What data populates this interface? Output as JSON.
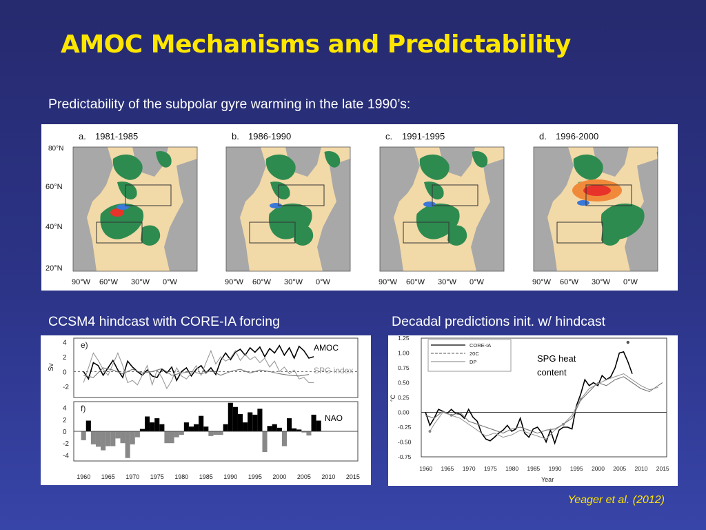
{
  "slide": {
    "title": "AMOC Mechanisms and Predictability",
    "subtitle": "Predictability of the subpolar gyre warming in the late 1990’s:",
    "caption_left": "CCSM4 hindcast with CORE-IA forcing",
    "caption_right": "Decadal predictions init. w/ hindcast",
    "citation": "Yeager et al. (2012)"
  },
  "maps": {
    "lat_labels": [
      "60°N",
      "40°N",
      "20°N"
    ],
    "lon_labels": [
      "90°W",
      "60°W",
      "30°W",
      "0°W"
    ],
    "top_label": "80°N",
    "panels": [
      {
        "letter": "a.",
        "period": "1981-1985"
      },
      {
        "letter": "b.",
        "period": "1986-1990"
      },
      {
        "letter": "c.",
        "period": "1991-1995"
      },
      {
        "letter": "d.",
        "period": "1996-2000"
      }
    ],
    "colors": {
      "land": "#a8a8a8",
      "positive": "#f2d9a8",
      "negative": "#2e8b50",
      "warm": "#e8332a",
      "cool": "#3a78d8"
    }
  },
  "chart_data": [
    {
      "type": "line",
      "panel": "e)",
      "ylabel": "Sv",
      "ylim": [
        -3.5,
        4.5
      ],
      "yticks": [
        4,
        2,
        0,
        -2
      ],
      "series": [
        {
          "name": "AMOC",
          "color": "#000000",
          "x": [
            1960,
            1961,
            1962,
            1963,
            1964,
            1965,
            1966,
            1967,
            1968,
            1969,
            1970,
            1971,
            1972,
            1973,
            1974,
            1975,
            1976,
            1977,
            1978,
            1979,
            1980,
            1981,
            1982,
            1983,
            1984,
            1985,
            1986,
            1987,
            1988,
            1989,
            1990,
            1991,
            1992,
            1993,
            1994,
            1995,
            1996,
            1997,
            1998,
            1999,
            2000,
            2001,
            2002,
            2003,
            2004,
            2005,
            2006,
            2007
          ],
          "values": [
            0,
            -1,
            1.2,
            0.8,
            -0.5,
            0.5,
            1.5,
            0.2,
            -0.8,
            1.4,
            0.6,
            0,
            -0.5,
            0.2,
            -0.6,
            -0.8,
            0.3,
            -0.2,
            0.6,
            -1.2,
            0,
            0.5,
            -0.6,
            0.3,
            0.8,
            -0.2,
            0.5,
            -0.4,
            1.5,
            2.5,
            1.6,
            2.6,
            3,
            2.2,
            3.2,
            2.6,
            3.3,
            2,
            3.1,
            2.5,
            3.5,
            2.2,
            3.2,
            1.8,
            3.4,
            2.8,
            1.8,
            2
          ]
        },
        {
          "name": "SPG index",
          "color": "#999999",
          "x": [
            1960,
            1961,
            1962,
            1963,
            1964,
            1965,
            1966,
            1967,
            1968,
            1969,
            1970,
            1971,
            1972,
            1973,
            1974,
            1975,
            1976,
            1977,
            1978,
            1979,
            1980,
            1981,
            1982,
            1983,
            1984,
            1985,
            1986,
            1987,
            1988,
            1989,
            1990,
            1991,
            1992,
            1993,
            1994,
            1995,
            1996,
            1997,
            1998,
            1999,
            2000,
            2001,
            2002,
            2003,
            2004,
            2005,
            2006,
            2007
          ],
          "values": [
            -1.5,
            0.5,
            2.5,
            1.5,
            0.3,
            -0.5,
            1,
            2.5,
            0.8,
            -1.5,
            -1.2,
            -1.8,
            -0.5,
            0.8,
            -1.8,
            0.2,
            -0.8,
            -2.3,
            -1.2,
            0.5,
            -0.6,
            -1,
            -0.2,
            0.8,
            -0.5,
            1.2,
            2.8,
            1,
            2,
            1.4,
            1.8,
            2.8,
            1.5,
            2.3,
            1.6,
            2,
            1.2,
            1.8,
            0.6,
            1.4,
            0,
            0.6,
            -0.3,
            0.2,
            -1,
            -0.8,
            -1.5,
            -1.5
          ]
        },
        {
          "name": "",
          "color": "#777777",
          "x": [
            1960,
            1962,
            1964,
            1966,
            1968,
            1970,
            1972,
            1974,
            1976,
            1978,
            1980,
            1982,
            1984,
            1986,
            1988,
            1990,
            1992,
            1994,
            1996,
            1998,
            2000,
            2002,
            2004,
            2006
          ],
          "values": [
            -0.5,
            -0.8,
            0.5,
            0.2,
            -0.3,
            0.3,
            -0.2,
            0,
            0.4,
            -0.5,
            -0.2,
            0,
            -0.3,
            0.1,
            -0.5,
            0,
            0.3,
            -0.2,
            0.2,
            0,
            -0.3,
            -0.5,
            -0.6,
            -0.4
          ]
        }
      ]
    },
    {
      "type": "bar",
      "panel": "f)",
      "name": "NAO",
      "ylim": [
        -5,
        5
      ],
      "yticks": [
        4,
        2,
        0,
        -2,
        -4
      ],
      "xticks": [
        1960,
        1965,
        1970,
        1975,
        1980,
        1985,
        1990,
        1995,
        2000,
        2005,
        2010,
        2015
      ],
      "x": [
        1960,
        1961,
        1962,
        1963,
        1964,
        1965,
        1966,
        1967,
        1968,
        1969,
        1970,
        1971,
        1972,
        1973,
        1974,
        1975,
        1976,
        1977,
        1978,
        1979,
        1980,
        1981,
        1982,
        1983,
        1984,
        1985,
        1986,
        1987,
        1988,
        1989,
        1990,
        1991,
        1992,
        1993,
        1994,
        1995,
        1996,
        1997,
        1998,
        1999,
        2000,
        2001,
        2002,
        2003,
        2004,
        2005,
        2006,
        2007,
        2008
      ],
      "values": [
        -1.5,
        1.8,
        -2.2,
        -2.6,
        -3.2,
        -2.5,
        -2.5,
        -1.2,
        -2,
        -4.5,
        -2.2,
        -1,
        0.4,
        2.5,
        1.5,
        2.2,
        1.2,
        -2,
        -2,
        -1,
        -0.6,
        1.5,
        0.8,
        1.2,
        2.6,
        0.8,
        -0.8,
        -0.6,
        -0.6,
        1.2,
        4.8,
        4.1,
        2.9,
        1.5,
        3.2,
        2.8,
        3.8,
        -3.5,
        0.9,
        1.2,
        0.6,
        -2.5,
        2.2,
        0.5,
        0.3,
        -0.2,
        -0.7,
        2.8,
        1.8
      ]
    },
    {
      "type": "line",
      "ylabel": "°C",
      "xlabel": "Year",
      "ylim": [
        -0.75,
        1.25
      ],
      "yticks": [
        1.25,
        1.0,
        0.75,
        0.5,
        0.25,
        0.0,
        -0.25,
        -0.5,
        -0.75
      ],
      "xticks": [
        1960,
        1965,
        1970,
        1975,
        1980,
        1985,
        1990,
        1995,
        2000,
        2005,
        2010,
        2015
      ],
      "legend": {
        "placement": "top-right",
        "entries": [
          "CORE-IA",
          "20C",
          "DP"
        ]
      },
      "series": [
        {
          "name": "CORE-IA",
          "color": "#000000",
          "x": [
            1960,
            1961,
            1962,
            1963,
            1964,
            1965,
            1966,
            1967,
            1968,
            1969,
            1970,
            1971,
            1972,
            1973,
            1974,
            1975,
            1976,
            1977,
            1978,
            1979,
            1980,
            1981,
            1982,
            1983,
            1984,
            1985,
            1986,
            1987,
            1988,
            1989,
            1990,
            1991,
            1992,
            1993,
            1994,
            1995,
            1996,
            1997,
            1998,
            1999,
            2000,
            2001,
            2002,
            2003,
            2004,
            2005,
            2006,
            2007,
            2008
          ],
          "values": [
            0,
            -0.22,
            -0.1,
            0.05,
            0.02,
            -0.02,
            0.05,
            -0.02,
            -0.03,
            -0.1,
            0.05,
            -0.08,
            -0.15,
            -0.35,
            -0.45,
            -0.48,
            -0.42,
            -0.35,
            -0.3,
            -0.22,
            -0.32,
            -0.28,
            -0.1,
            -0.35,
            -0.42,
            -0.28,
            -0.25,
            -0.35,
            -0.5,
            -0.3,
            -0.52,
            -0.3,
            -0.25,
            -0.25,
            -0.28,
            0.1,
            0.3,
            0.55,
            0.45,
            0.5,
            0.45,
            0.62,
            0.55,
            0.6,
            0.75,
            1.0,
            1.02,
            0.85,
            0.65
          ]
        },
        {
          "name": "20C",
          "color": "#777777",
          "x": [
            1960,
            1962,
            1964,
            1966,
            1968,
            1970,
            1972,
            1974,
            1976,
            1978,
            1980,
            1982,
            1984,
            1986,
            1988,
            1990,
            1992,
            1994,
            1996,
            1998,
            2000,
            2002,
            2004,
            2006,
            2008,
            2010,
            2012,
            2014,
            2015
          ],
          "values": [
            -0.05,
            -0.1,
            0.02,
            -0.05,
            0,
            -0.15,
            -0.2,
            -0.25,
            -0.3,
            -0.35,
            -0.28,
            -0.25,
            -0.3,
            -0.35,
            -0.3,
            -0.28,
            -0.2,
            -0.1,
            0.2,
            0.35,
            0.5,
            0.45,
            0.55,
            0.6,
            0.5,
            0.4,
            0.35,
            0.45,
            0.5
          ]
        },
        {
          "name": "DP",
          "color": "#999999",
          "x": [
            1961,
            1962,
            1964,
            1966,
            1968,
            1970,
            1972,
            1974,
            1976,
            1978,
            1980,
            1982,
            1984,
            1986,
            1988,
            1990,
            1992,
            1994,
            1996,
            1998,
            2000,
            2002,
            2004,
            2006,
            2008,
            2010,
            2012,
            2014
          ],
          "values": [
            -0.32,
            -0.2,
            0,
            -0.05,
            -0.1,
            -0.2,
            -0.3,
            -0.4,
            -0.35,
            -0.42,
            -0.38,
            -0.3,
            -0.35,
            -0.4,
            -0.45,
            -0.3,
            -0.2,
            -0.05,
            0.22,
            0.4,
            0.48,
            0.55,
            0.6,
            0.65,
            0.55,
            0.45,
            0.38,
            0.42
          ]
        }
      ]
    }
  ],
  "annotations": {
    "amoc": "AMOC",
    "spg_index": "SPG index",
    "nao": "NAO",
    "spg_heat_line1": "SPG heat",
    "spg_heat_line2": "content"
  }
}
